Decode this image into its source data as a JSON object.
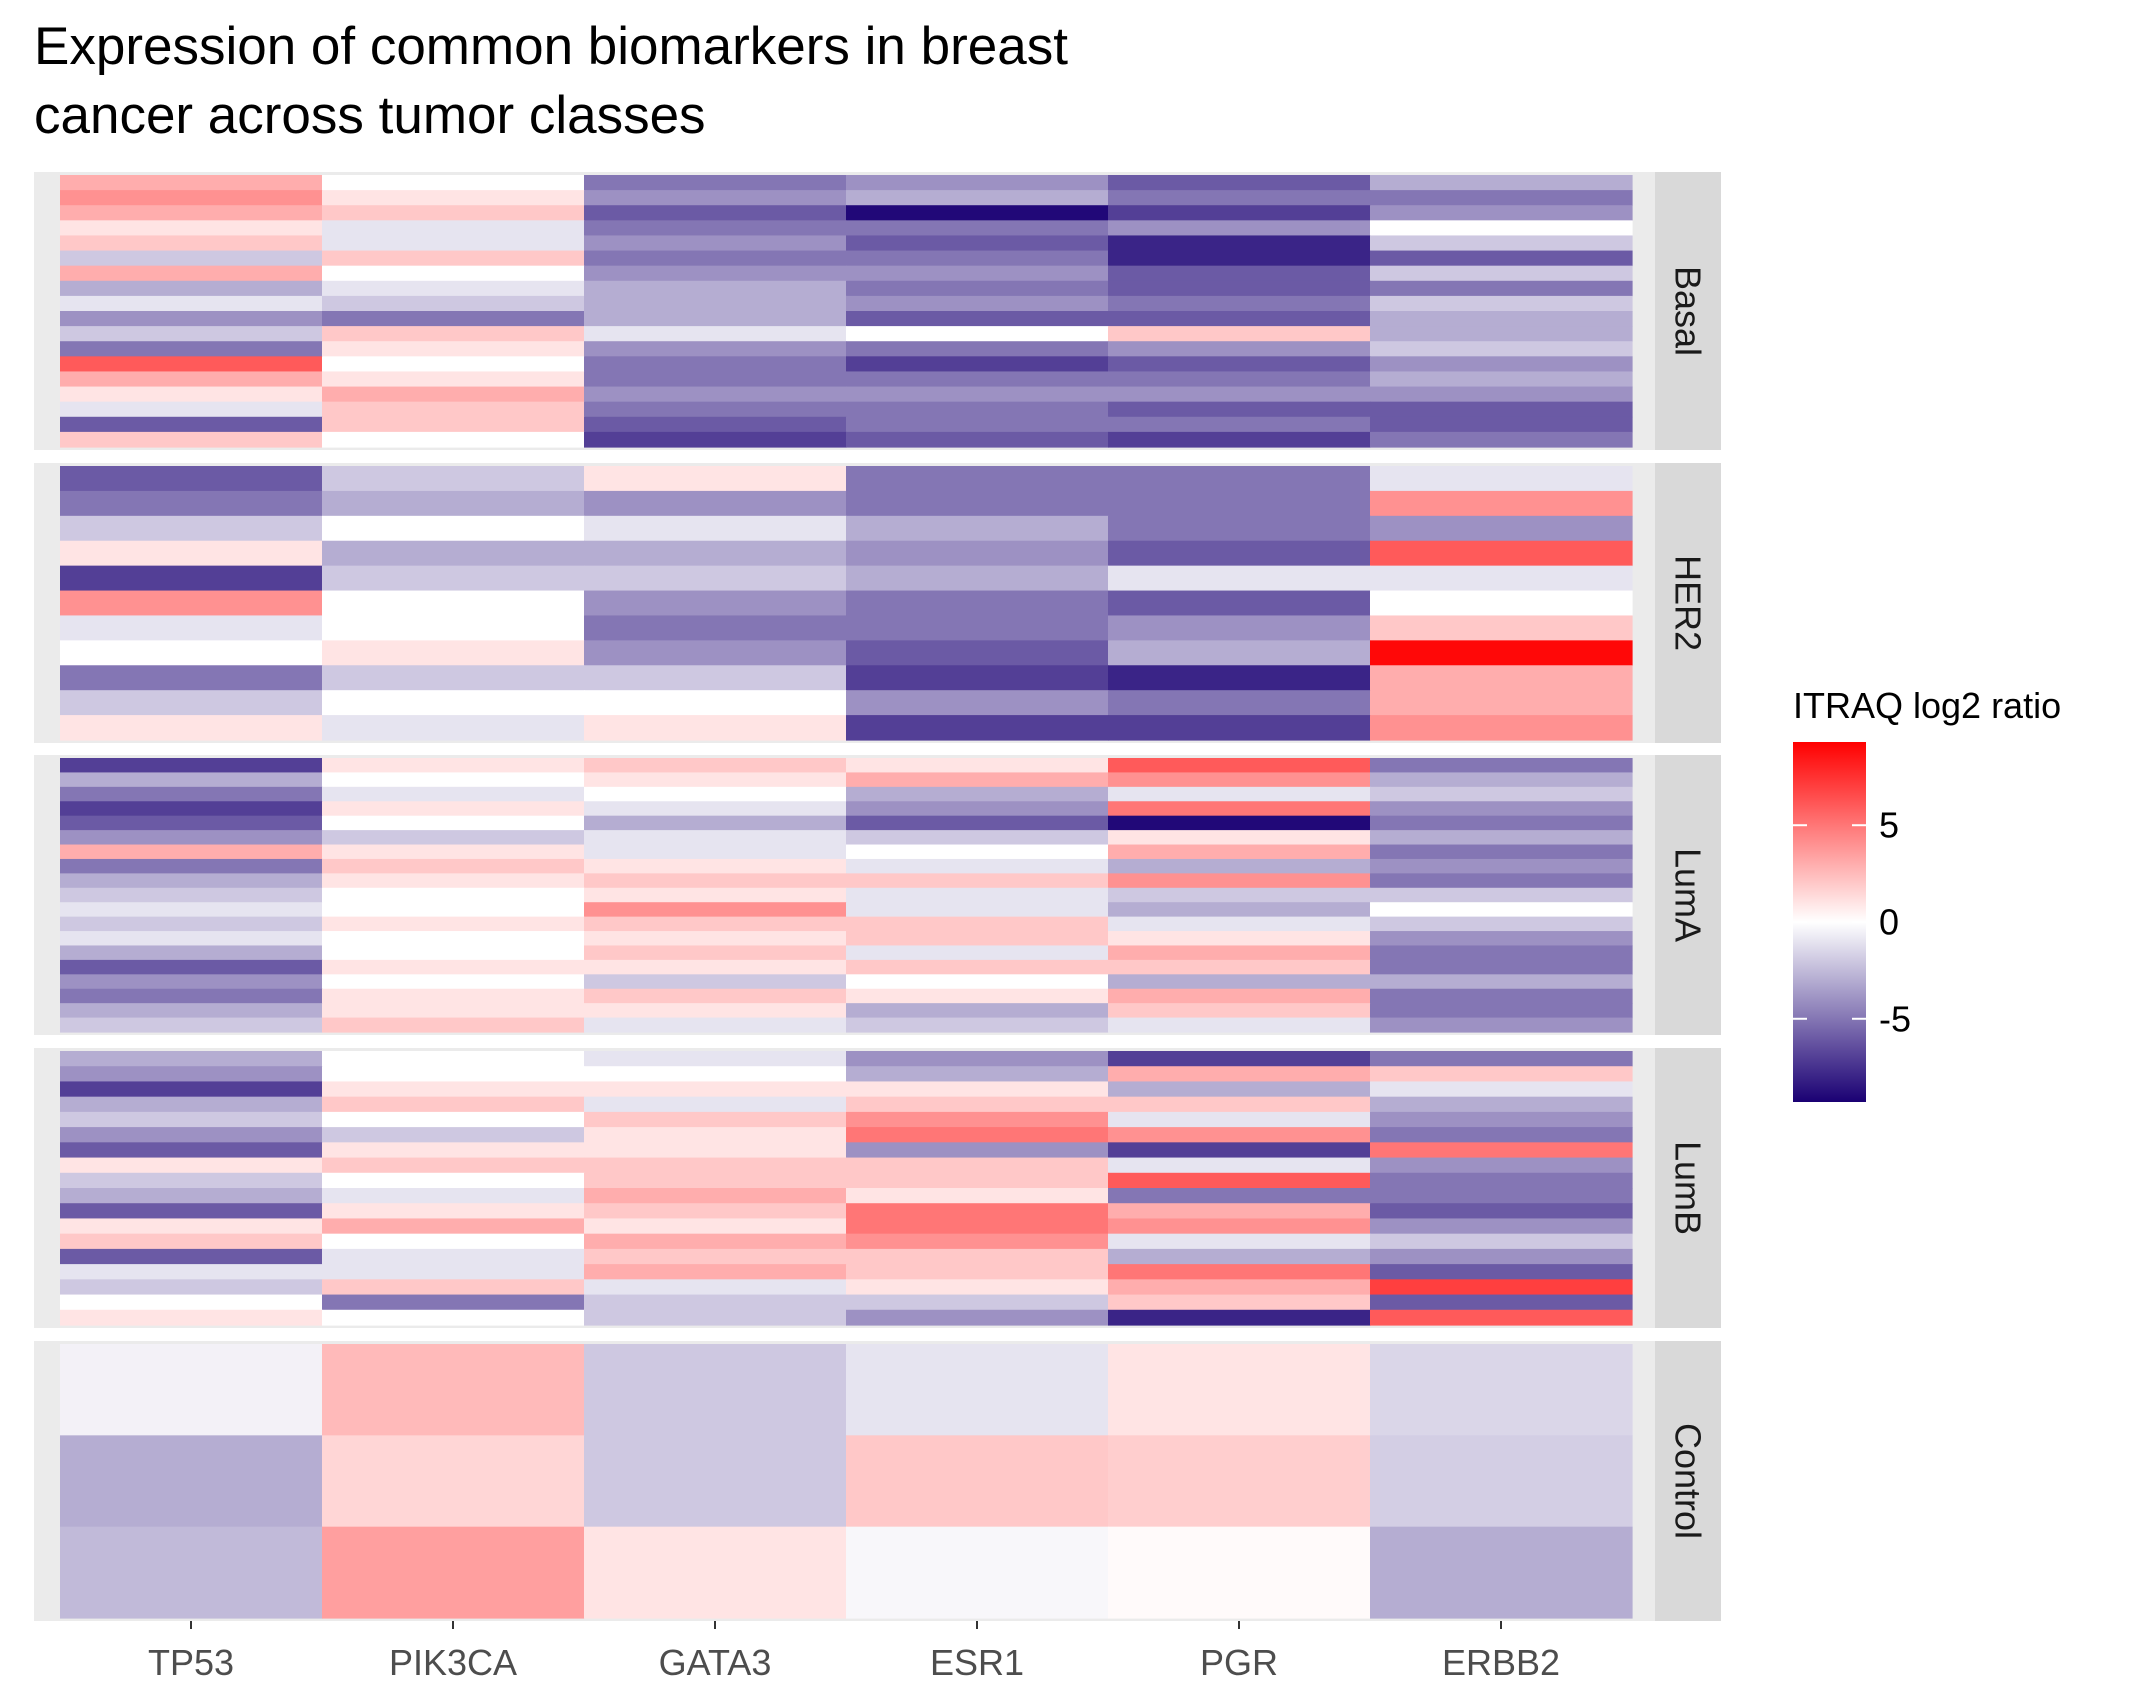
{
  "chart_data": {
    "type": "heatmap",
    "title": "Expression of common biomarkers in breast cancer across tumor classes",
    "title_lines": [
      "Expression of common biomarkers in breast",
      "cancer across tumor classes"
    ],
    "x_categories": [
      "TP53",
      "PIK3CA",
      "GATA3",
      "ESR1",
      "PGR",
      "ERBB2"
    ],
    "color_scale": {
      "title": "ITRAQ log2 ratio",
      "low_color": "#1a0073",
      "mid_color": "#ffffff",
      "high_color": "#ff0000",
      "midpoint": 0,
      "limits": [
        -9.3,
        9.3
      ],
      "breaks": [
        5,
        0,
        -5
      ],
      "break_labels": [
        "5",
        "0",
        "-5"
      ]
    },
    "panels": [
      {
        "name": "Basal",
        "samples": [
          [
            3,
            0,
            -5,
            -4,
            -6,
            -3
          ],
          [
            4,
            1,
            -4,
            -3,
            -5,
            -5
          ],
          [
            3,
            2,
            -6,
            -9,
            -7,
            -4
          ],
          [
            1,
            -1,
            -5,
            -5,
            -4,
            0
          ],
          [
            2,
            -1,
            -4,
            -6,
            -8,
            -2
          ],
          [
            -2,
            2,
            -5,
            -5,
            -8,
            -6
          ],
          [
            3,
            0,
            -4,
            -4,
            -6,
            -2
          ],
          [
            -3,
            -1,
            -3,
            -5,
            -6,
            -5
          ],
          [
            -1,
            -2,
            -3,
            -4,
            -5,
            -2
          ],
          [
            -4,
            -5,
            -3,
            -6,
            -6,
            -3
          ],
          [
            -2,
            2,
            -1,
            0,
            2,
            -3
          ],
          [
            -5,
            1,
            -4,
            -5,
            -4,
            -2
          ],
          [
            6,
            0,
            -5,
            -7,
            -6,
            -4
          ],
          [
            3,
            1,
            -5,
            -5,
            -5,
            -3
          ],
          [
            1,
            3,
            -4,
            -4,
            -4,
            -4
          ],
          [
            -1,
            2,
            -5,
            -5,
            -6,
            -6
          ],
          [
            -6,
            2,
            -6,
            -5,
            -5,
            -6
          ],
          [
            2,
            0,
            -7,
            -6,
            -7,
            -5
          ]
        ]
      },
      {
        "name": "HER2",
        "samples": [
          [
            -6,
            -2,
            1,
            -5,
            -5,
            -1
          ],
          [
            -5,
            -3,
            -4,
            -5,
            -5,
            4
          ],
          [
            -2,
            0,
            -1,
            -3,
            -5,
            -4
          ],
          [
            1,
            -3,
            -3,
            -4,
            -6,
            6
          ],
          [
            -7,
            -2,
            -2,
            -3,
            -1,
            -1
          ],
          [
            4,
            0,
            -4,
            -5,
            -6,
            0
          ],
          [
            -1,
            0,
            -5,
            -5,
            -4,
            2
          ],
          [
            0,
            1,
            -4,
            -6,
            -3,
            9
          ],
          [
            -5,
            -2,
            -2,
            -7,
            -8,
            3
          ],
          [
            -2,
            0,
            0,
            -4,
            -5,
            3
          ],
          [
            1,
            -1,
            1,
            -7,
            -7,
            4
          ]
        ]
      },
      {
        "name": "LumA",
        "samples": [
          [
            -7,
            1,
            2,
            1,
            6,
            -5
          ],
          [
            -3,
            0,
            1,
            3,
            4,
            -3
          ],
          [
            -5,
            -1,
            0,
            -3,
            -1,
            -2
          ],
          [
            -7,
            1,
            -1,
            -4,
            5,
            -4
          ],
          [
            -6,
            0,
            -3,
            -6,
            -9,
            -5
          ],
          [
            -4,
            -2,
            -1,
            -2,
            1,
            -3
          ],
          [
            3,
            1,
            -1,
            0,
            3,
            -5
          ],
          [
            -5,
            2,
            1,
            -1,
            -3,
            -4
          ],
          [
            -3,
            1,
            2,
            2,
            4,
            -5
          ],
          [
            -2,
            0,
            1,
            -1,
            -2,
            -2
          ],
          [
            -1,
            0,
            4,
            -1,
            -3,
            0
          ],
          [
            -2,
            1,
            2,
            2,
            -1,
            -2
          ],
          [
            -1,
            0,
            1,
            2,
            1,
            -4
          ],
          [
            -3,
            0,
            2,
            -1,
            3,
            -5
          ],
          [
            -6,
            1,
            1,
            2,
            2,
            -5
          ],
          [
            -4,
            0,
            -2,
            0,
            -3,
            -3
          ],
          [
            -5,
            1,
            2,
            1,
            3,
            -5
          ],
          [
            -3,
            1,
            1,
            -3,
            2,
            -5
          ],
          [
            -2,
            2,
            -1,
            -2,
            -1,
            -4
          ]
        ]
      },
      {
        "name": "LumB",
        "samples": [
          [
            -3,
            0,
            -1,
            -4,
            -7,
            -5
          ],
          [
            -4,
            0,
            0,
            -3,
            3,
            2
          ],
          [
            -7,
            1,
            1,
            1,
            -3,
            -1
          ],
          [
            -3,
            2,
            -1,
            2,
            2,
            -3
          ],
          [
            -2,
            0,
            2,
            4,
            -1,
            -4
          ],
          [
            -4,
            -2,
            1,
            5,
            4,
            -5
          ],
          [
            -6,
            1,
            1,
            -4,
            -7,
            5
          ],
          [
            1,
            2,
            2,
            2,
            -1,
            -4
          ],
          [
            -2,
            0,
            2,
            2,
            6,
            -5
          ],
          [
            -3,
            -1,
            3,
            1,
            -5,
            -5
          ],
          [
            -6,
            1,
            2,
            5,
            3,
            -6
          ],
          [
            1,
            3,
            1,
            5,
            4,
            -4
          ],
          [
            2,
            0,
            3,
            4,
            -1,
            -2
          ],
          [
            -6,
            -1,
            2,
            2,
            -3,
            -4
          ],
          [
            -1,
            -1,
            3,
            2,
            5,
            -6
          ],
          [
            -2,
            2,
            -1,
            1,
            3,
            7
          ],
          [
            0,
            -5,
            -2,
            -2,
            2,
            -6
          ],
          [
            1,
            0,
            -2,
            -4,
            -8,
            6
          ]
        ]
      },
      {
        "name": "Control",
        "samples": [
          [
            -0.5,
            2.5,
            -2,
            -1,
            1,
            -1.5
          ],
          [
            -3,
            1.5,
            -2,
            2,
            1.8,
            -1.8
          ],
          [
            -2.5,
            3.5,
            1,
            -0.3,
            0.2,
            -3
          ]
        ]
      }
    ],
    "xlabel": "",
    "ylabel": ""
  }
}
